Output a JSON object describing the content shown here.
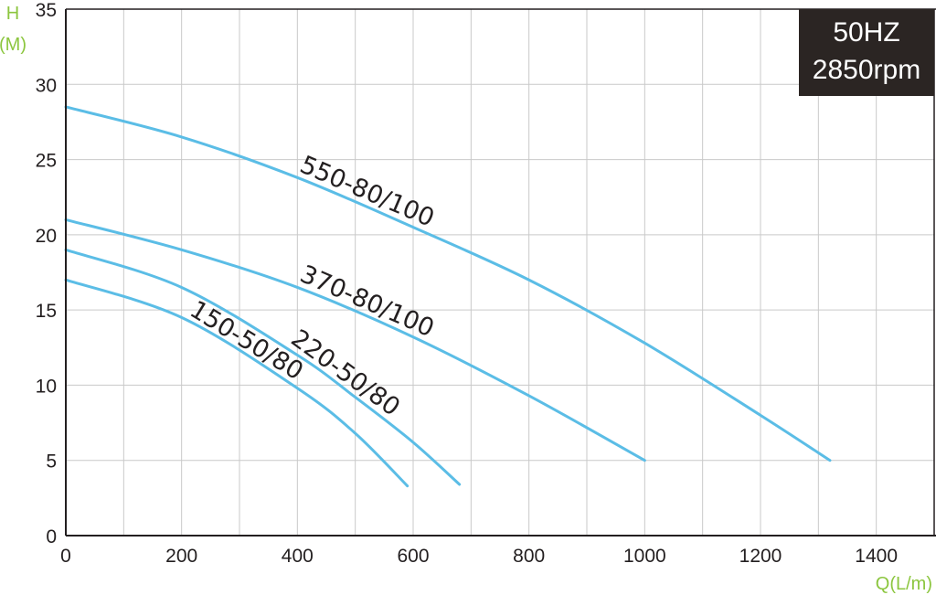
{
  "chart_data": {
    "type": "line",
    "title": "",
    "xlabel": "Q(L/m)",
    "ylabel": "H",
    "ylabel_unit": "(M)",
    "xlim": [
      0,
      1500
    ],
    "ylim": [
      0,
      35
    ],
    "xticks": [
      0,
      200,
      400,
      600,
      800,
      1000,
      1200,
      1400
    ],
    "yticks": [
      0,
      5,
      10,
      15,
      20,
      25,
      30,
      35
    ],
    "grid": true,
    "legend": "none",
    "badge": {
      "line1": "50HZ",
      "line2": "2850rpm"
    },
    "colors": {
      "curve": "#5bbde6",
      "axis_label": "#8cc63f",
      "grid": "#c9c9c9",
      "badge_bg": "#2b2523"
    },
    "series": [
      {
        "name": "550-80/100",
        "x": [
          0,
          200,
          400,
          600,
          800,
          1000,
          1200,
          1320
        ],
        "y": [
          28.5,
          26.5,
          23.8,
          20.5,
          17.0,
          12.8,
          8.0,
          5.0
        ]
      },
      {
        "name": "370-80/100",
        "x": [
          0,
          200,
          400,
          600,
          800,
          1000
        ],
        "y": [
          21.0,
          19.0,
          16.5,
          13.2,
          9.3,
          5.0
        ]
      },
      {
        "name": "220-50/80",
        "x": [
          0,
          200,
          400,
          500,
          600,
          680
        ],
        "y": [
          19.0,
          16.5,
          12.0,
          9.2,
          6.2,
          3.4
        ]
      },
      {
        "name": "150-50/80",
        "x": [
          0,
          200,
          400,
          500,
          590
        ],
        "y": [
          17.0,
          14.5,
          9.8,
          6.8,
          3.3
        ]
      }
    ]
  }
}
